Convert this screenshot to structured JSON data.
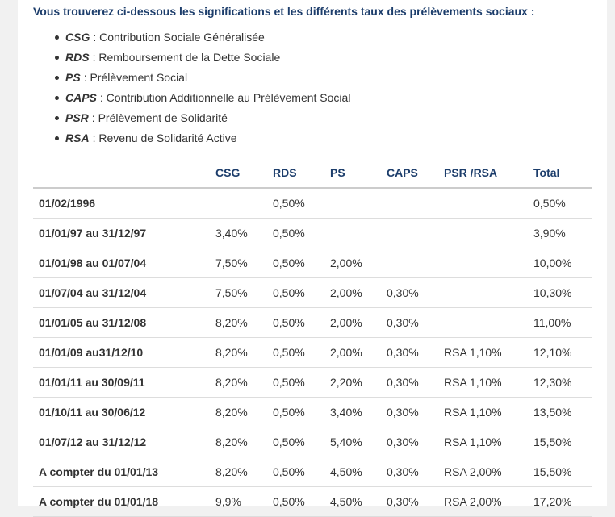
{
  "intro": "Vous trouverez ci-dessous les significations et les différents taux des prélèvements sociaux :",
  "definitions": [
    {
      "abbr": "CSG",
      "text": ": Contribution Sociale Généralisée"
    },
    {
      "abbr": "RDS",
      "text": ": Remboursement de la Dette Sociale"
    },
    {
      "abbr": "PS",
      "text": ": Prélèvement Social"
    },
    {
      "abbr": "CAPS",
      "text": ": Contribution Additionnelle au Prélèvement Social"
    },
    {
      "abbr": "PSR",
      "text": ": Prélèvement de Solidarité"
    },
    {
      "abbr": "RSA",
      "text": ": Revenu de Solidarité Active"
    }
  ],
  "table": {
    "header": [
      "CSG",
      "RDS",
      "PS",
      "CAPS",
      "PSR /RSA",
      "Total"
    ],
    "rows": [
      [
        "01/02/1996",
        null,
        "0,50%",
        null,
        null,
        null,
        "0,50%"
      ],
      [
        "01/01/97 au 31/12/97",
        "3,40%",
        "0,50%",
        null,
        null,
        null,
        "3,90%"
      ],
      [
        "01/01/98 au 01/07/04",
        "7,50%",
        "0,50%",
        "2,00%",
        null,
        null,
        "10,00%"
      ],
      [
        "01/07/04 au 31/12/04",
        "7,50%",
        "0,50%",
        "2,00%",
        "0,30%",
        null,
        "10,30%"
      ],
      [
        "01/01/05 au 31/12/08",
        "8,20%",
        "0,50%",
        "2,00%",
        "0,30%",
        null,
        "11,00%"
      ],
      [
        "01/01/09 au31/12/10",
        "8,20%",
        "0,50%",
        "2,00%",
        "0,30%",
        "RSA 1,10%",
        "12,10%"
      ],
      [
        "01/01/11 au 30/09/11",
        "8,20%",
        "0,50%",
        "2,20%",
        "0,30%",
        "RSA 1,10%",
        "12,30%"
      ],
      [
        "01/10/11 au 30/06/12",
        "8,20%",
        "0,50%",
        "3,40%",
        "0,30%",
        "RSA 1,10%",
        "13,50%"
      ],
      [
        "01/07/12 au 31/12/12",
        "8,20%",
        "0,50%",
        "5,40%",
        "0,30%",
        "RSA 1,10%",
        "15,50%"
      ],
      [
        "A compter du 01/01/13",
        "8,20%",
        "0,50%",
        "4,50%",
        "0,30%",
        "RSA 2,00%",
        "15,50%"
      ],
      [
        "A compter du 01/01/18",
        "9,9%",
        "0,50%",
        "4,50%",
        "0,30%",
        "RSA 2,00%",
        "17,20%"
      ]
    ]
  }
}
